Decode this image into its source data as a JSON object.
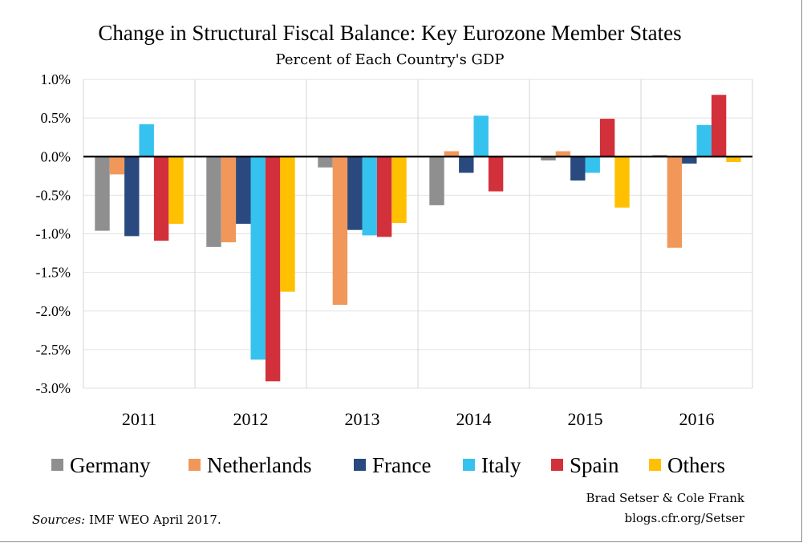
{
  "chart_data": {
    "type": "bar",
    "title": "Change in Structural Fiscal Balance: Key Eurozone Member States",
    "subtitle": "Percent of Each Country's GDP",
    "xlabel": "",
    "ylabel": "",
    "ylim": [
      -3.0,
      1.0
    ],
    "yticks": [
      1.0,
      0.5,
      0.0,
      -0.5,
      -1.0,
      -1.5,
      -2.0,
      -2.5,
      -3.0
    ],
    "ytick_labels": [
      "1.0%",
      "0.5%",
      "0.0%",
      "-0.5%",
      "-1.0%",
      "-1.5%",
      "-2.0%",
      "-2.5%",
      "-3.0%"
    ],
    "grid": true,
    "legend_position": "bottom",
    "categories": [
      "2011",
      "2012",
      "2013",
      "2014",
      "2015",
      "2016"
    ],
    "series": [
      {
        "name": "Germany",
        "color": "#8f8f8f",
        "values": [
          -0.96,
          -1.17,
          -0.14,
          -0.63,
          -0.05,
          0.02
        ]
      },
      {
        "name": "Netherlands",
        "color": "#f2975a",
        "values": [
          -0.23,
          -1.11,
          -1.92,
          0.07,
          0.07,
          -1.18
        ]
      },
      {
        "name": "France",
        "color": "#2a4a7f",
        "values": [
          -1.03,
          -0.87,
          -0.95,
          -0.21,
          -0.31,
          -0.09
        ]
      },
      {
        "name": "Italy",
        "color": "#36c2ef",
        "values": [
          0.42,
          -2.63,
          -1.02,
          0.53,
          -0.21,
          0.41
        ]
      },
      {
        "name": "Spain",
        "color": "#d2303a",
        "values": [
          -1.09,
          -2.91,
          -1.04,
          -0.45,
          0.49,
          0.8
        ]
      },
      {
        "name": "Others",
        "color": "#ffc000",
        "values": [
          -0.87,
          -1.75,
          -0.86,
          0.0,
          -0.66,
          -0.07
        ]
      }
    ]
  },
  "credits": {
    "authors": "Brad Setser & Cole Frank",
    "site": "blogs.cfr.org/Setser"
  },
  "sources": {
    "label": "Sources:",
    "text": " IMF WEO April 2017."
  }
}
